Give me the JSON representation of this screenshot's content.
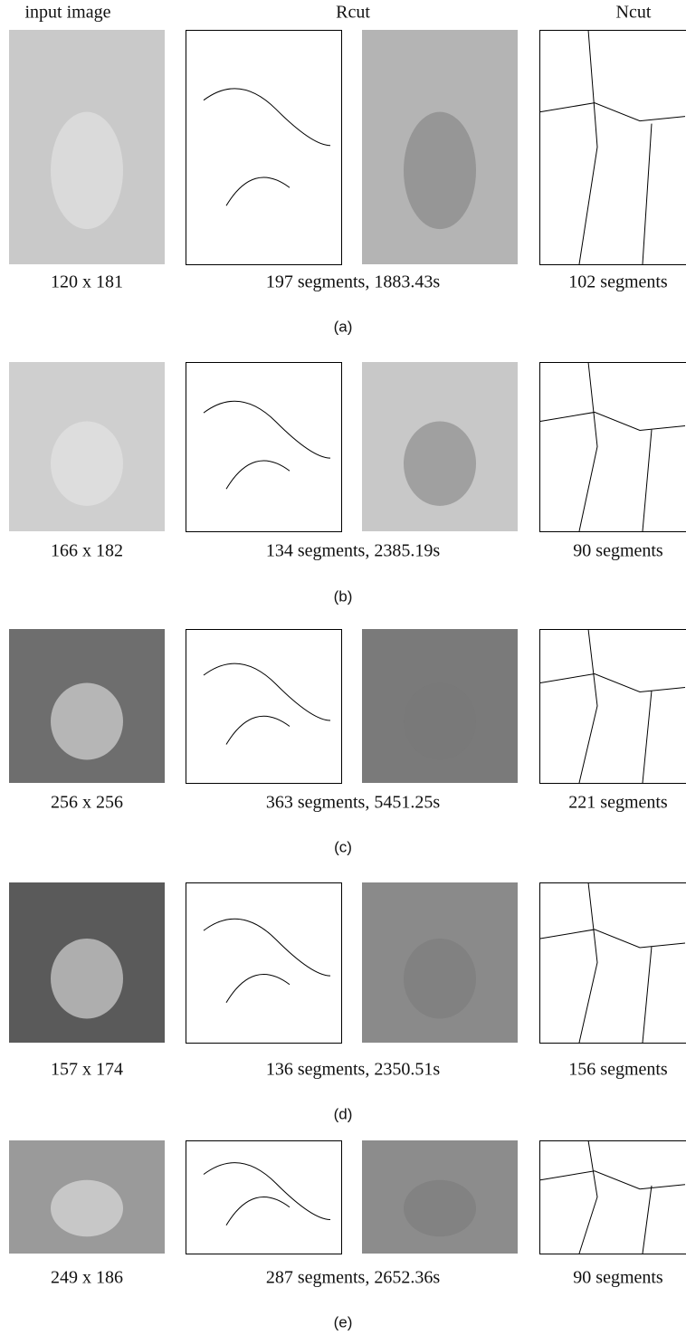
{
  "header": {
    "input": "input image",
    "rcut": "Rcut",
    "ncut": "Ncut"
  },
  "rows": [
    {
      "size": "120 x 181",
      "rcut": "197 segments, 1883.43s",
      "ncut": "102 segments",
      "label": "(a)"
    },
    {
      "size": "166 x 182",
      "rcut": "134 segments, 2385.19s",
      "ncut": "90 segments",
      "label": "(b)"
    },
    {
      "size": "256 x 256",
      "rcut": "363 segments, 5451.25s",
      "ncut": "221 segments",
      "label": "(c)"
    },
    {
      "size": "157 x 174",
      "rcut": "136 segments, 2350.51s",
      "ncut": "156 segments",
      "label": "(d)"
    },
    {
      "size": "249 x 186",
      "rcut": "287 segments, 2652.36s",
      "ncut": "90 segments",
      "label": "(e)"
    }
  ]
}
